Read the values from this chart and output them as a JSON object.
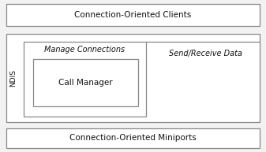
{
  "bg_color": "#f2f2f2",
  "box_color": "#ffffff",
  "border_color": "#888888",
  "text_color": "#111111",
  "top_label": "Connection-Oriented Clients",
  "bottom_label": "Connection-Oriented Miniports",
  "ndis_label": "NDIS",
  "manage_label": "Manage Connections",
  "send_label": "Send/Receive Data",
  "call_manager_label": "Call Manager",
  "fig_width": 3.37,
  "fig_height": 1.93,
  "dpi": 100
}
